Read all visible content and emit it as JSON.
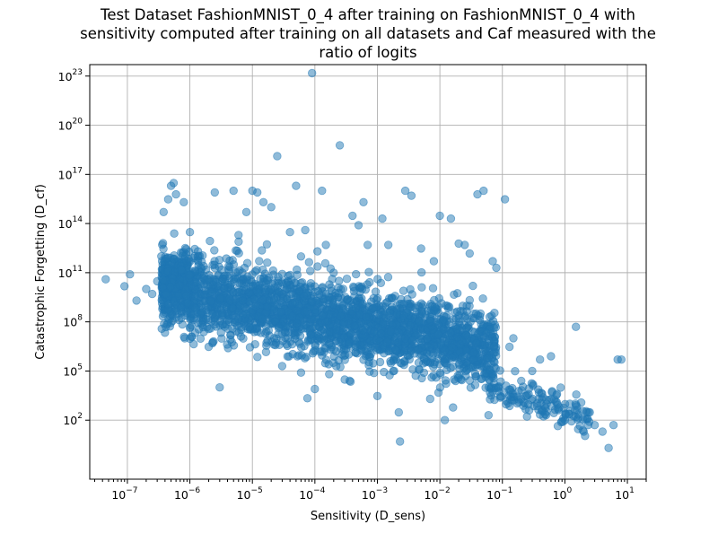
{
  "chart_data": {
    "type": "scatter",
    "title_lines": [
      "Test Dataset FashionMNIST_0_4 after training on FashionMNIST_0_4 with",
      "sensitivity computed after training on all datasets and Caf measured with the",
      "ratio of logits"
    ],
    "xlabel": "Sensitivity (D_sens)",
    "ylabel": "Catastrophic Forgetting (D_cf)",
    "x_scale": "log",
    "y_scale": "log",
    "xlim": [
      2.5e-08,
      20
    ],
    "ylim": [
      0.025,
      5e+23
    ],
    "grid": true,
    "x_ticks": [
      {
        "value": 1e-07,
        "label": "10^{-7}"
      },
      {
        "value": 1e-06,
        "label": "10^{-6}"
      },
      {
        "value": 1e-05,
        "label": "10^{-5}"
      },
      {
        "value": 0.0001,
        "label": "10^{-4}"
      },
      {
        "value": 0.001,
        "label": "10^{-3}"
      },
      {
        "value": 0.01,
        "label": "10^{-2}"
      },
      {
        "value": 0.1,
        "label": "10^{-1}"
      },
      {
        "value": 1,
        "label": "10^{0}"
      },
      {
        "value": 10,
        "label": "10^{1}"
      }
    ],
    "y_ticks": [
      {
        "value": 100.0,
        "label": "10^{2}"
      },
      {
        "value": 100000.0,
        "label": "10^{5}"
      },
      {
        "value": 100000000.0,
        "label": "10^{8}"
      },
      {
        "value": 100000000000.0,
        "label": "10^{11}"
      },
      {
        "value": 100000000000000.0,
        "label": "10^{14}"
      },
      {
        "value": 1e+17,
        "label": "10^{17}"
      },
      {
        "value": 1e+20,
        "label": "10^{20}"
      },
      {
        "value": 1e+23,
        "label": "10^{23}"
      }
    ],
    "color": "#1f77b4",
    "series": [
      {
        "points": [
          [
            4.5e-08,
            40000000000.0
          ],
          [
            9e-08,
            15000000000.0
          ],
          [
            1.1e-07,
            80000000000.0
          ],
          [
            1.4e-07,
            2000000000.0
          ],
          [
            2e-07,
            10000000000.0
          ],
          [
            2.5e-07,
            5000000000.0
          ],
          [
            3e-07,
            30000000000.0
          ],
          [
            3.5e-07,
            1000000000000.0
          ],
          [
            3.8e-07,
            500000000000000.0
          ],
          [
            4e-07,
            1000000000.0
          ],
          [
            4.5e-07,
            3000000000000000.0
          ],
          [
            5e-07,
            2e+16
          ],
          [
            5.5e-07,
            3e+16
          ],
          [
            6e-07,
            6000000000000000.0
          ],
          [
            8e-07,
            2000000000000000.0
          ],
          [
            1e-06,
            30000000000000.0
          ],
          [
            1.1e-06,
            1000000000.0
          ],
          [
            1.5e-06,
            80000000.0
          ],
          [
            2e-06,
            3000000.0
          ],
          [
            2.3e-06,
            5000000.0
          ],
          [
            2.5e-06,
            8000000000000000.0
          ],
          [
            3e-06,
            10000.0
          ],
          [
            4e-06,
            300000000.0
          ],
          [
            5e-06,
            1e+16
          ],
          [
            6e-06,
            20000000000000.0
          ],
          [
            8e-06,
            500000000000000.0
          ],
          [
            1e-05,
            1e+16
          ],
          [
            1.2e-05,
            8000000000000000.0
          ],
          [
            1.5e-05,
            2000000000000000.0
          ],
          [
            2e-05,
            1000000000000000.0
          ],
          [
            2.5e-05,
            1.3e+18
          ],
          [
            3e-05,
            200000.0
          ],
          [
            4e-05,
            30000000000000.0
          ],
          [
            5e-05,
            2e+16
          ],
          [
            6e-05,
            80000.0
          ],
          [
            7e-05,
            40000000000000.0
          ],
          [
            9e-05,
            1.5e+23
          ],
          [
            0.0001,
            8000.0
          ],
          [
            0.00011,
            2000000000000.0
          ],
          [
            0.00013,
            1e+16
          ],
          [
            0.00015,
            5000000000000.0
          ],
          [
            0.0002,
            100000000000.0
          ],
          [
            0.00025,
            6e+18
          ],
          [
            0.0003,
            30000.0
          ],
          [
            0.0004,
            300000000000000.0
          ],
          [
            0.0005,
            80000000000000.0
          ],
          [
            0.0006,
            2000000000000000.0
          ],
          [
            0.0007,
            5000000000000.0
          ],
          [
            0.001,
            3000.0
          ],
          [
            0.0012,
            200000000000000.0
          ],
          [
            0.0015,
            5000000000000.0
          ],
          [
            0.0022,
            300.0
          ],
          [
            0.0023,
            5
          ],
          [
            0.0028,
            1e+16
          ],
          [
            0.0035,
            5000000000000000.0
          ],
          [
            0.005,
            3000000000000.0
          ],
          [
            0.007,
            2000.0
          ],
          [
            0.008,
            500000000000.0
          ],
          [
            0.01,
            300000000000000.0
          ],
          [
            0.012,
            100.0
          ],
          [
            0.015,
            200000000000000.0
          ],
          [
            0.02,
            6000000000000.0
          ],
          [
            0.025,
            5000000000000.0
          ],
          [
            0.03,
            1500000000000.0
          ],
          [
            0.04,
            6000000000000000.0
          ],
          [
            0.05,
            1e+16
          ],
          [
            0.06,
            200.0
          ],
          [
            0.07,
            500000000000.0
          ],
          [
            0.08,
            200000000000.0
          ],
          [
            0.11,
            3000000000000000.0
          ],
          [
            0.13,
            3000000.0
          ],
          [
            0.15,
            10000000.0
          ],
          [
            0.2,
            2000.0
          ],
          [
            0.3,
            100000.0
          ],
          [
            0.4,
            500000.0
          ],
          [
            0.5,
            200.0
          ],
          [
            0.6,
            800000.0
          ],
          [
            1,
            100.0
          ],
          [
            1.2,
            1000.0
          ],
          [
            1.5,
            50000000.0
          ],
          [
            2,
            20.0
          ],
          [
            2.5,
            300.0
          ],
          [
            3,
            50.0
          ],
          [
            4,
            20.0
          ],
          [
            5,
            2
          ],
          [
            6,
            50.0
          ],
          [
            7,
            500000.0
          ],
          [
            8,
            500000.0
          ]
        ]
      }
    ]
  }
}
